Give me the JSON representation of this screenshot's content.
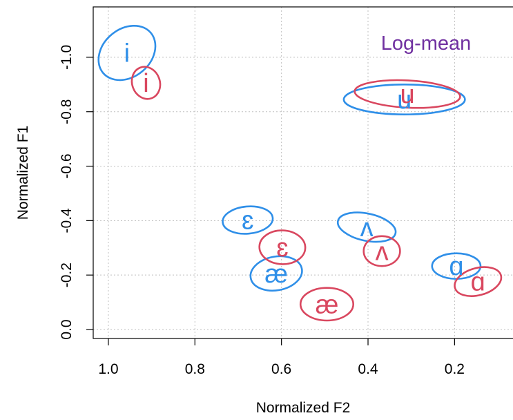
{
  "chart_data": {
    "type": "scatter",
    "title": "",
    "annotation": "Log-mean",
    "xlabel": "Normalized F2",
    "ylabel": "Normalized F1",
    "xlim": [
      1.035,
      0.065
    ],
    "ylim": [
      0.033,
      -1.185
    ],
    "x_reversed": true,
    "y_reversed": true,
    "grid": true,
    "x_ticks": [
      1.0,
      0.8,
      0.6,
      0.4,
      0.2
    ],
    "x_tick_labels": [
      "1.0",
      "0.8",
      "0.6",
      "0.4",
      "0.2"
    ],
    "y_ticks": [
      0.0,
      -0.2,
      -0.4,
      -0.6,
      -0.8,
      -1.0
    ],
    "y_tick_labels": [
      "0.0",
      "-0.2",
      "-0.4",
      "-0.6",
      "-0.8",
      "-1.0"
    ],
    "colors": {
      "blue": "#2f8fe8",
      "red": "#d9475f",
      "annotation": "#7030a0",
      "grid": "#bfbfbf",
      "axis": "#000000"
    },
    "series": [
      {
        "color_key": "blue",
        "points": [
          {
            "label": "i",
            "x": 0.957,
            "y": -1.016,
            "rx": 0.072,
            "ry": 0.088,
            "rot": -40
          },
          {
            "label": "u",
            "x": 0.316,
            "y": -0.845,
            "rx": 0.14,
            "ry": 0.055,
            "rot": 0
          },
          {
            "label": "ɛ",
            "x": 0.678,
            "y": -0.402,
            "rx": 0.058,
            "ry": 0.05,
            "rot": -5
          },
          {
            "label": "æ",
            "x": 0.612,
            "y": -0.206,
            "rx": 0.06,
            "ry": 0.062,
            "rot": -10
          },
          {
            "label": "ʌ",
            "x": 0.403,
            "y": -0.376,
            "rx": 0.068,
            "ry": 0.05,
            "rot": 12
          },
          {
            "label": "ɑ",
            "x": 0.196,
            "y": -0.233,
            "rx": 0.056,
            "ry": 0.047,
            "rot": 0
          }
        ]
      },
      {
        "color_key": "red",
        "points": [
          {
            "label": "i",
            "x": 0.913,
            "y": -0.906,
            "rx": 0.032,
            "ry": 0.06,
            "rot": -20
          },
          {
            "label": "u",
            "x": 0.309,
            "y": -0.865,
            "rx": 0.122,
            "ry": 0.05,
            "rot": 3
          },
          {
            "label": "ɛ",
            "x": 0.598,
            "y": -0.302,
            "rx": 0.053,
            "ry": 0.062,
            "rot": 2
          },
          {
            "label": "æ",
            "x": 0.495,
            "y": -0.093,
            "rx": 0.061,
            "ry": 0.06,
            "rot": 0
          },
          {
            "label": "ʌ",
            "x": 0.368,
            "y": -0.288,
            "rx": 0.042,
            "ry": 0.055,
            "rot": 0
          },
          {
            "label": "ɑ",
            "x": 0.146,
            "y": -0.176,
            "rx": 0.055,
            "ry": 0.05,
            "rot": -15
          }
        ]
      }
    ]
  }
}
